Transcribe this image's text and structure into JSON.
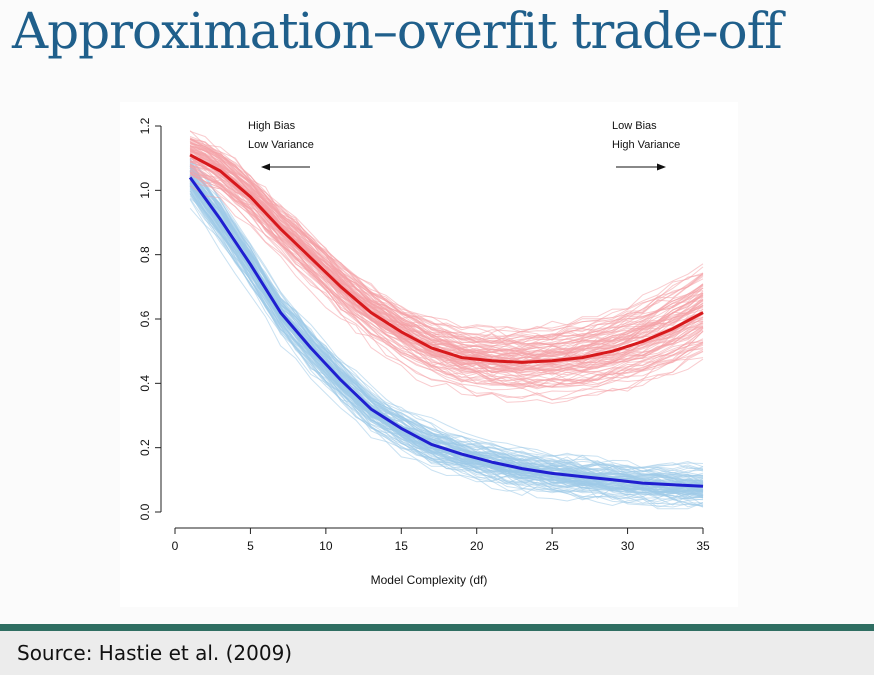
{
  "slide": {
    "title": "Approximation–overfit trade-off",
    "source": "Source: Hastie et al. (2009)"
  },
  "chart_data": {
    "type": "line",
    "xlabel": "Model Complexity (df)",
    "ylabel": "",
    "xlim": [
      0,
      35
    ],
    "ylim": [
      0,
      1.2
    ],
    "x_ticks": [
      0,
      5,
      10,
      15,
      20,
      25,
      30,
      35
    ],
    "y_ticks": [
      0.0,
      0.2,
      0.4,
      0.6,
      0.8,
      1.0,
      1.2
    ],
    "annotations": [
      {
        "lines": [
          "High Bias",
          "Low Variance"
        ],
        "arrow": "left"
      },
      {
        "lines": [
          "Low Bias",
          "High Variance"
        ],
        "arrow": "right"
      }
    ],
    "series": [
      {
        "role": "test-error-mean",
        "color": "#d7191c",
        "x": [
          1,
          3,
          5,
          7,
          9,
          11,
          13,
          15,
          17,
          19,
          21,
          23,
          25,
          27,
          29,
          31,
          33,
          35
        ],
        "y": [
          1.11,
          1.06,
          0.98,
          0.88,
          0.79,
          0.7,
          0.62,
          0.56,
          0.51,
          0.48,
          0.47,
          0.465,
          0.47,
          0.48,
          0.5,
          0.53,
          0.57,
          0.62
        ]
      },
      {
        "role": "training-error-mean",
        "color": "#1f1fd0",
        "x": [
          1,
          3,
          5,
          7,
          9,
          11,
          13,
          15,
          17,
          19,
          21,
          23,
          25,
          27,
          29,
          31,
          33,
          35
        ],
        "y": [
          1.04,
          0.91,
          0.77,
          0.62,
          0.51,
          0.41,
          0.32,
          0.26,
          0.21,
          0.18,
          0.155,
          0.135,
          0.12,
          0.11,
          0.1,
          0.09,
          0.085,
          0.08
        ]
      }
    ],
    "background_curves": {
      "test_color": "#f4a3a8",
      "train_color": "#9fcbe8",
      "count_per_group": 100
    }
  }
}
